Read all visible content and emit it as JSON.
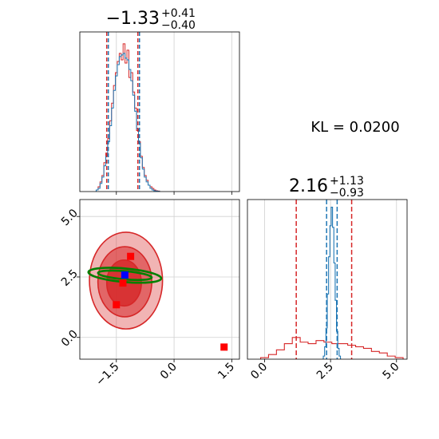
{
  "chart_data": [
    {
      "panel": "marginal-x",
      "type": "histogram",
      "title_value": "−1.33",
      "title_plus": "+0.41",
      "title_minus": "−0.40",
      "xlim": [
        -2.45,
        1.7
      ],
      "xticks": [
        -1.5,
        0.0,
        1.5
      ],
      "grid": true,
      "quantile_lines": [
        -1.73,
        -0.92
      ],
      "bin_centers": [
        -2.0,
        -1.95,
        -1.9,
        -1.85,
        -1.8,
        -1.75,
        -1.7,
        -1.65,
        -1.6,
        -1.55,
        -1.5,
        -1.45,
        -1.4,
        -1.35,
        -1.3,
        -1.25,
        -1.2,
        -1.15,
        -1.1,
        -1.05,
        -1.0,
        -0.95,
        -0.9,
        -0.85,
        -0.8,
        -0.75,
        -0.7,
        -0.65,
        -0.6,
        -0.55,
        -0.5,
        -0.45,
        -0.4
      ],
      "series": [
        {
          "name": "",
          "color": "#d62728",
          "values": [
            0.01,
            0.03,
            0.06,
            0.1,
            0.18,
            0.24,
            0.33,
            0.44,
            0.55,
            0.66,
            0.74,
            0.81,
            0.86,
            0.82,
            0.92,
            0.8,
            0.88,
            0.71,
            0.74,
            0.62,
            0.52,
            0.38,
            0.31,
            0.22,
            0.15,
            0.1,
            0.07,
            0.04,
            0.03,
            0.02,
            0.01,
            0.005,
            0.003
          ]
        },
        {
          "name": "",
          "color": "#1f77b4",
          "values": [
            0.01,
            0.02,
            0.05,
            0.09,
            0.16,
            0.22,
            0.31,
            0.41,
            0.52,
            0.63,
            0.72,
            0.79,
            0.84,
            0.85,
            0.86,
            0.83,
            0.82,
            0.76,
            0.69,
            0.6,
            0.5,
            0.39,
            0.3,
            0.21,
            0.14,
            0.09,
            0.06,
            0.04,
            0.02,
            0.01,
            0.005,
            0.003,
            0.002
          ]
        }
      ]
    },
    {
      "panel": "joint",
      "type": "scatter",
      "xlim": [
        -2.45,
        1.7
      ],
      "ylim": [
        -0.9,
        5.7
      ],
      "xticks": [
        -1.5,
        0.0,
        1.5
      ],
      "yticks": [
        0.0,
        2.5,
        5.0
      ],
      "grid": true,
      "series": [
        {
          "name": "",
          "color": "#d62728",
          "kind": "contours",
          "levels": [
            {
              "cx": -1.25,
              "cy": 2.35,
              "rx": 0.95,
              "ry": 2.0
            },
            {
              "cx": -1.28,
              "cy": 2.3,
              "rx": 0.7,
              "ry": 1.45
            },
            {
              "cx": -1.3,
              "cy": 2.25,
              "rx": 0.45,
              "ry": 0.95
            }
          ]
        },
        {
          "name": "",
          "color": "#008000",
          "kind": "contours",
          "levels": [
            {
              "cx": -1.28,
              "cy": 2.57,
              "rx": 0.95,
              "ry": 0.28,
              "angle": 5
            },
            {
              "cx": -1.28,
              "cy": 2.57,
              "rx": 0.7,
              "ry": 0.17,
              "angle": 5
            }
          ]
        },
        {
          "name": "",
          "color": "#ff0000",
          "kind": "markers",
          "points": [
            [
              -1.13,
              3.35
            ],
            [
              -1.33,
              2.25
            ],
            [
              -1.5,
              1.35
            ],
            [
              1.3,
              -0.4
            ]
          ]
        },
        {
          "name": "",
          "color": "#0000ff",
          "kind": "markers",
          "points": [
            [
              -1.28,
              2.58
            ]
          ]
        }
      ]
    },
    {
      "panel": "marginal-y",
      "type": "histogram",
      "title_value": "2.16",
      "title_plus": "+1.13",
      "title_minus": "−0.93",
      "xlim": [
        -0.65,
        5.4
      ],
      "xticks": [
        0.0,
        2.5,
        5.0
      ],
      "grid": true,
      "series": [
        {
          "name": "",
          "color": "#d62728",
          "quantile_lines": [
            1.2,
            3.3
          ],
          "bin_centers": [
            0.0,
            0.3,
            0.6,
            0.9,
            1.2,
            1.5,
            1.8,
            2.1,
            2.4,
            2.7,
            3.0,
            3.3,
            3.6,
            3.9,
            4.2,
            4.5,
            4.8,
            5.1
          ],
          "values": [
            0.01,
            0.03,
            0.06,
            0.1,
            0.14,
            0.11,
            0.1,
            0.12,
            0.11,
            0.1,
            0.1,
            0.09,
            0.08,
            0.07,
            0.05,
            0.04,
            0.02,
            0.01
          ]
        },
        {
          "name": "",
          "color": "#1f77b4",
          "quantile_lines": [
            2.35,
            2.75
          ],
          "bin_centers": [
            2.2,
            2.25,
            2.3,
            2.35,
            2.4,
            2.45,
            2.5,
            2.55,
            2.6,
            2.65,
            2.7,
            2.75,
            2.8,
            2.85,
            2.9
          ],
          "values": [
            0.0,
            0.02,
            0.08,
            0.2,
            0.42,
            0.66,
            0.86,
            0.98,
            0.85,
            0.62,
            0.38,
            0.18,
            0.07,
            0.02,
            0.0
          ]
        }
      ]
    }
  ],
  "annotation": {
    "text": "KL = 0.0200"
  }
}
